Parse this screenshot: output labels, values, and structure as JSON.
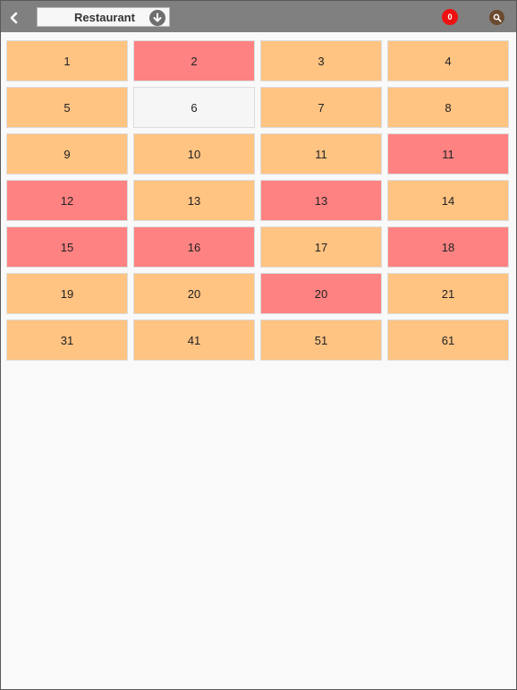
{
  "header": {
    "location_label": "Restaurant",
    "notification_count": "0",
    "icons": {
      "back": "chevron-left-icon",
      "selector": "arrow-down-circle-icon",
      "search": "search-icon"
    }
  },
  "colors": {
    "available": "#ffc382",
    "occupied": "#ff8282",
    "empty": "#f6f6f6"
  },
  "tables": [
    {
      "label": "1",
      "status": "available"
    },
    {
      "label": "2",
      "status": "occupied"
    },
    {
      "label": "3",
      "status": "available"
    },
    {
      "label": "4",
      "status": "available"
    },
    {
      "label": "5",
      "status": "available"
    },
    {
      "label": "6",
      "status": "empty"
    },
    {
      "label": "7",
      "status": "available"
    },
    {
      "label": "8",
      "status": "available"
    },
    {
      "label": "9",
      "status": "available"
    },
    {
      "label": "10",
      "status": "available"
    },
    {
      "label": "11",
      "status": "available"
    },
    {
      "label": "11",
      "status": "occupied"
    },
    {
      "label": "12",
      "status": "occupied"
    },
    {
      "label": "13",
      "status": "available"
    },
    {
      "label": "13",
      "status": "occupied"
    },
    {
      "label": "14",
      "status": "available"
    },
    {
      "label": "15",
      "status": "occupied"
    },
    {
      "label": "16",
      "status": "occupied"
    },
    {
      "label": "17",
      "status": "available"
    },
    {
      "label": "18",
      "status": "occupied"
    },
    {
      "label": "19",
      "status": "available"
    },
    {
      "label": "20",
      "status": "available"
    },
    {
      "label": "20",
      "status": "occupied"
    },
    {
      "label": "21",
      "status": "available"
    },
    {
      "label": "31",
      "status": "available"
    },
    {
      "label": "41",
      "status": "available"
    },
    {
      "label": "51",
      "status": "available"
    },
    {
      "label": "61",
      "status": "available"
    }
  ]
}
